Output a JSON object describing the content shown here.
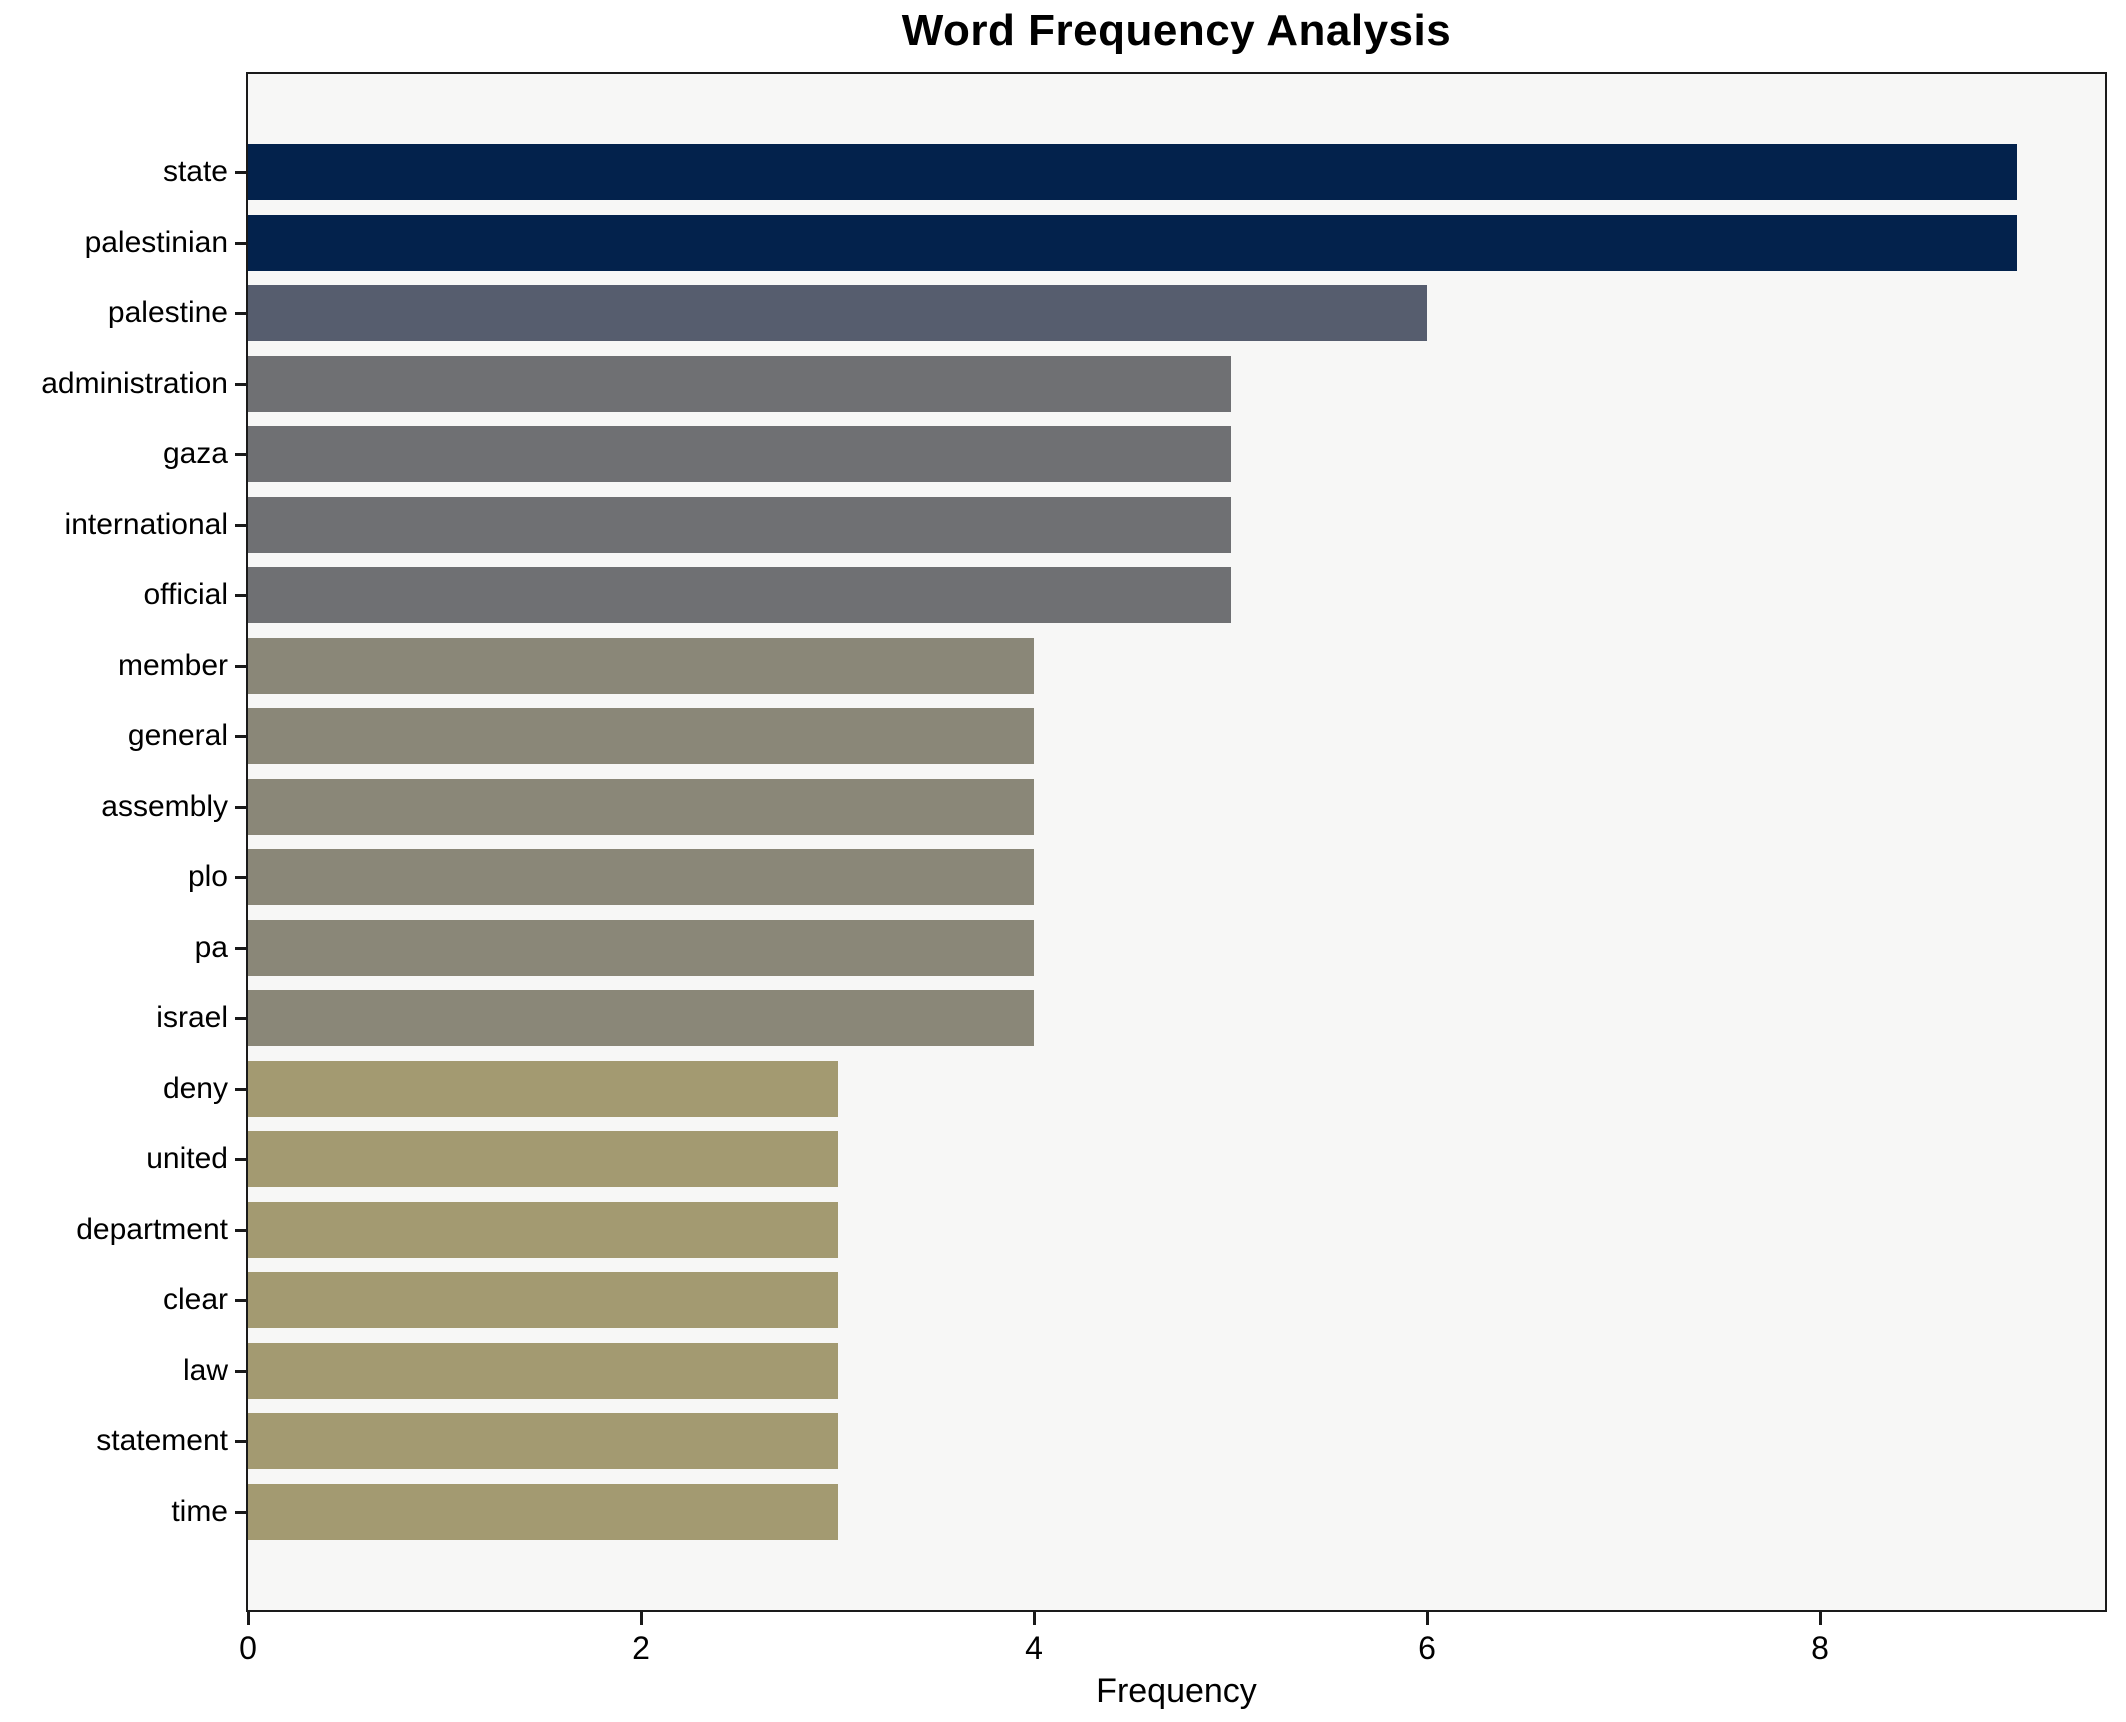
{
  "chart_data": {
    "type": "bar",
    "orientation": "horizontal",
    "title": "Word Frequency Analysis",
    "xlabel": "Frequency",
    "ylabel": "",
    "categories": [
      "state",
      "palestinian",
      "palestine",
      "administration",
      "gaza",
      "international",
      "official",
      "member",
      "general",
      "assembly",
      "plo",
      "pa",
      "israel",
      "deny",
      "united",
      "department",
      "clear",
      "law",
      "statement",
      "time"
    ],
    "values": [
      9,
      9,
      6,
      5,
      5,
      5,
      5,
      4,
      4,
      4,
      4,
      4,
      4,
      3,
      3,
      3,
      3,
      3,
      3,
      3
    ],
    "bar_colors": [
      "#03224c",
      "#03224c",
      "#565d6e",
      "#6f7073",
      "#6f7073",
      "#6f7073",
      "#6f7073",
      "#8a8778",
      "#8a8778",
      "#8a8778",
      "#8a8778",
      "#8a8778",
      "#8a8778",
      "#a39a71",
      "#a39a71",
      "#a39a71",
      "#a39a71",
      "#a39a71",
      "#a39a71",
      "#a39a71"
    ],
    "xlim": [
      0,
      9.45
    ],
    "xticks": [
      0,
      2,
      4,
      6,
      8
    ],
    "grid": false,
    "legend_position": "none",
    "plot_bg": "#f7f7f6",
    "fig_bg": "#ffffff",
    "spine_color": "#1a1a1a",
    "colormap": "cividis_r"
  }
}
